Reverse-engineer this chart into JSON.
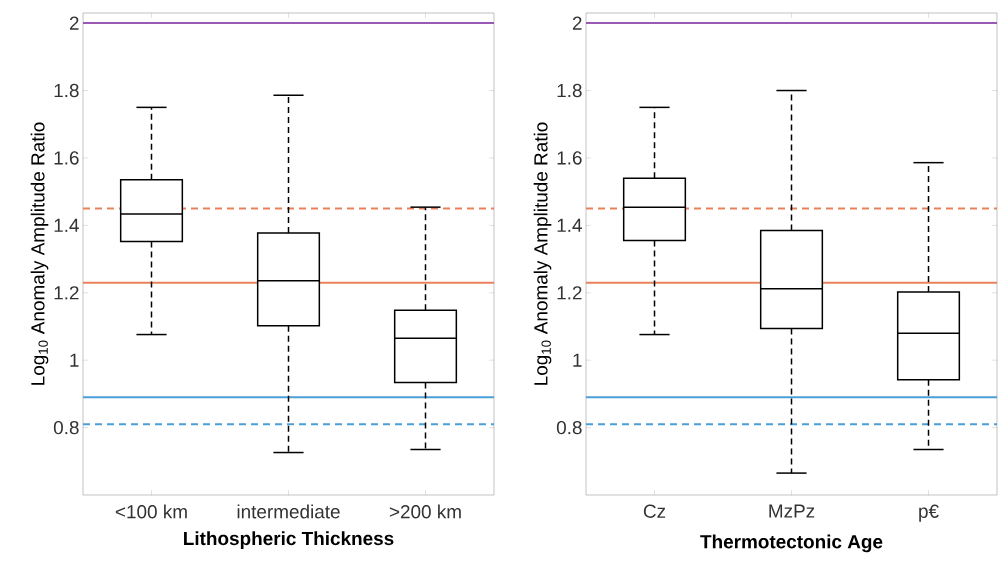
{
  "chart_data": [
    {
      "type": "box",
      "xlabel": "Lithospheric Thickness",
      "ylabel": "Log$_{10}$ Anomaly Amplitude Ratio",
      "categories": [
        "<100 km",
        "intermediate",
        ">200 km"
      ],
      "boxes": [
        {
          "low": 1.076,
          "q1": 1.352,
          "median": 1.434,
          "q3": 1.535,
          "high": 1.75
        },
        {
          "low": 0.726,
          "q1": 1.102,
          "median": 1.236,
          "q3": 1.377,
          "high": 1.786
        },
        {
          "low": 0.735,
          "q1": 0.934,
          "median": 1.065,
          "q3": 1.148,
          "high": 1.454
        }
      ],
      "ylim": [
        0.6,
        2.03
      ],
      "yticks": [
        0.8,
        1,
        1.2,
        1.4,
        1.6,
        1.8,
        2
      ],
      "ref_lines": [
        {
          "axis": "y",
          "value": 2,
          "color": "#9b59b6",
          "line_style": "solid"
        },
        {
          "axis": "y",
          "value": 1.45,
          "color": "#e8825a",
          "line_style": "dashed"
        },
        {
          "axis": "y",
          "value": 1.23,
          "color": "#e8825a",
          "line_style": "solid"
        },
        {
          "axis": "y",
          "value": 0.89,
          "color": "#4a9fd8",
          "line_style": "solid"
        },
        {
          "axis": "y",
          "value": 0.81,
          "color": "#4a9fd8",
          "line_style": "dashed"
        }
      ]
    },
    {
      "type": "box",
      "xlabel": "Thermotectonic Age",
      "ylabel": "Log$_{10}$ Anomaly Amplitude Ratio",
      "categories": [
        "Cz",
        "MzPz",
        "p€"
      ],
      "boxes": [
        {
          "low": 1.076,
          "q1": 1.355,
          "median": 1.454,
          "q3": 1.54,
          "high": 1.75
        },
        {
          "low": 0.665,
          "q1": 1.094,
          "median": 1.212,
          "q3": 1.385,
          "high": 1.8
        },
        {
          "low": 0.735,
          "q1": 0.942,
          "median": 1.08,
          "q3": 1.202,
          "high": 1.586
        }
      ],
      "ylim": [
        0.6,
        2.03
      ],
      "yticks": [
        0.8,
        1,
        1.2,
        1.4,
        1.6,
        1.8,
        2
      ],
      "ref_lines": [
        {
          "axis": "y",
          "value": 2,
          "color": "#9b59b6",
          "line_style": "solid"
        },
        {
          "axis": "y",
          "value": 1.45,
          "color": "#e8825a",
          "line_style": "dashed"
        },
        {
          "axis": "y",
          "value": 1.23,
          "color": "#e8825a",
          "line_style": "solid"
        },
        {
          "axis": "y",
          "value": 0.89,
          "color": "#4a9fd8",
          "line_style": "solid"
        },
        {
          "axis": "y",
          "value": 0.81,
          "color": "#4a9fd8",
          "line_style": "dashed"
        }
      ]
    }
  ]
}
